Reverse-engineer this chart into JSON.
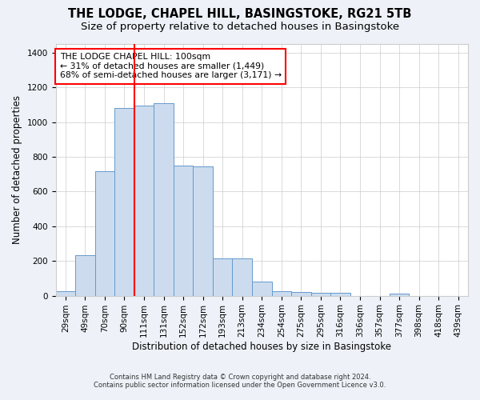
{
  "title": "THE LODGE, CHAPEL HILL, BASINGSTOKE, RG21 5TB",
  "subtitle": "Size of property relative to detached houses in Basingstoke",
  "xlabel": "Distribution of detached houses by size in Basingstoke",
  "ylabel": "Number of detached properties",
  "footnote1": "Contains HM Land Registry data © Crown copyright and database right 2024.",
  "footnote2": "Contains public sector information licensed under the Open Government Licence v3.0.",
  "categories": [
    "29sqm",
    "49sqm",
    "70sqm",
    "90sqm",
    "111sqm",
    "131sqm",
    "152sqm",
    "172sqm",
    "193sqm",
    "213sqm",
    "234sqm",
    "254sqm",
    "275sqm",
    "295sqm",
    "316sqm",
    "336sqm",
    "357sqm",
    "377sqm",
    "398sqm",
    "418sqm",
    "439sqm"
  ],
  "bar_values": [
    27,
    235,
    715,
    1080,
    1095,
    1110,
    750,
    745,
    215,
    215,
    80,
    25,
    20,
    18,
    15,
    0,
    0,
    10,
    0,
    0,
    0
  ],
  "bar_color": "#ccdcee",
  "bar_edge_color": "#6699cc",
  "vline_color": "red",
  "vline_label_title": "THE LODGE CHAPEL HILL: 100sqm",
  "vline_label_line1": "← 31% of detached houses are smaller (1,449)",
  "vline_label_line2": "68% of semi-detached houses are larger (3,171) →",
  "ylim": [
    0,
    1450
  ],
  "yticks": [
    0,
    200,
    400,
    600,
    800,
    1000,
    1200,
    1400
  ],
  "background_color": "#eef2f8",
  "plot_bg_color": "#ffffff",
  "title_fontsize": 10.5,
  "subtitle_fontsize": 9.5,
  "axis_label_fontsize": 8.5,
  "tick_fontsize": 7.5,
  "annotation_fontsize": 7.8
}
